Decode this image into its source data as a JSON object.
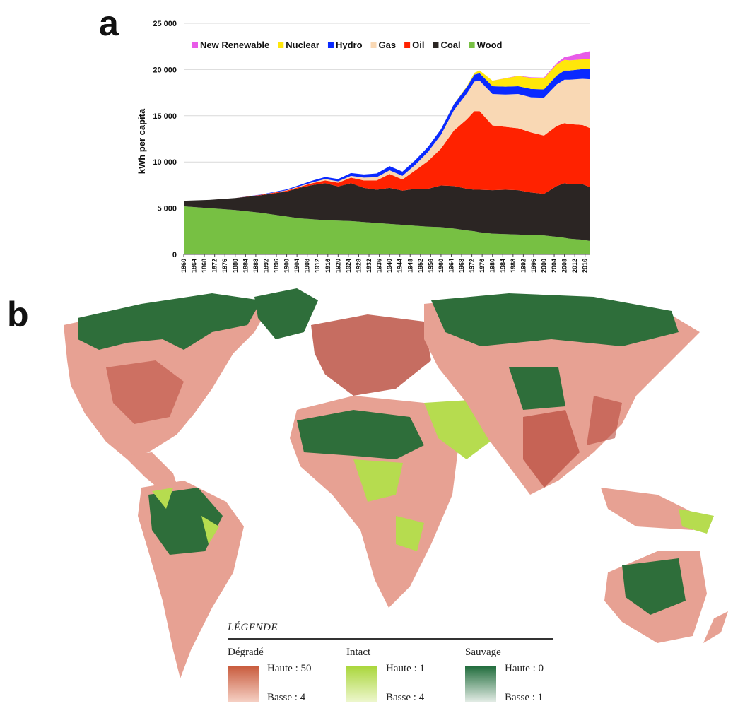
{
  "panels": {
    "a": "a",
    "b": "b"
  },
  "chart_data": {
    "type": "area",
    "stacked": true,
    "xlabel": "",
    "ylabel": "kWh per capita",
    "ylim": [
      0,
      25000
    ],
    "yticks": [
      0,
      5000,
      10000,
      15000,
      20000,
      25000
    ],
    "ytick_labels": [
      "0",
      "5 000",
      "10 000",
      "15 000",
      "20 000",
      "25 000"
    ],
    "xtick_labels": [
      "1860",
      "1864",
      "1868",
      "1872",
      "1876",
      "1880",
      "1884",
      "1888",
      "1892",
      "1896",
      "1900",
      "1904",
      "1908",
      "1912",
      "1916",
      "1920",
      "1924",
      "1928",
      "1932",
      "1936",
      "1940",
      "1944",
      "1948",
      "1952",
      "1956",
      "1960",
      "1964",
      "1968",
      "1972",
      "1976",
      "1980",
      "1984",
      "1988",
      "1992",
      "1996",
      "2000",
      "2004",
      "2008",
      "2012",
      "2016"
    ],
    "grid": "horizontal",
    "legend_position": "top",
    "x": [
      1860,
      1870,
      1880,
      1890,
      1900,
      1905,
      1910,
      1915,
      1920,
      1925,
      1930,
      1935,
      1940,
      1945,
      1950,
      1955,
      1960,
      1965,
      1970,
      1973,
      1975,
      1980,
      1985,
      1990,
      1995,
      2000,
      2005,
      2008,
      2010,
      2015,
      2018
    ],
    "series": [
      {
        "name": "Wood",
        "color": "#77c043",
        "values": [
          5200,
          5000,
          4800,
          4500,
          4100,
          3900,
          3800,
          3700,
          3650,
          3600,
          3500,
          3400,
          3300,
          3200,
          3100,
          3000,
          2950,
          2800,
          2600,
          2500,
          2400,
          2250,
          2200,
          2150,
          2100,
          2050,
          1900,
          1800,
          1700,
          1600,
          1450
        ]
      },
      {
        "name": "Coal",
        "color": "#2b2523",
        "values": [
          600,
          900,
          1300,
          1900,
          2700,
          3300,
          3700,
          4000,
          3700,
          4100,
          3700,
          3600,
          3900,
          3700,
          4000,
          4100,
          4500,
          4600,
          4500,
          4500,
          4600,
          4700,
          4800,
          4800,
          4600,
          4500,
          5500,
          5900,
          5900,
          6000,
          5800
        ]
      },
      {
        "name": "Oil",
        "color": "#ff2200",
        "values": [
          0,
          0,
          0,
          50,
          100,
          100,
          200,
          300,
          400,
          600,
          800,
          1000,
          1500,
          1200,
          2000,
          3000,
          4000,
          6000,
          7500,
          8500,
          8500,
          7000,
          6800,
          6700,
          6500,
          6300,
          6500,
          6500,
          6500,
          6400,
          6400
        ]
      },
      {
        "name": "Gas",
        "color": "#f9d8b4",
        "values": [
          0,
          0,
          0,
          0,
          50,
          80,
          100,
          150,
          150,
          200,
          300,
          350,
          400,
          400,
          600,
          1000,
          1500,
          2200,
          2800,
          3200,
          3300,
          3400,
          3500,
          3700,
          3800,
          4100,
          4500,
          4700,
          4800,
          5000,
          5300
        ]
      },
      {
        "name": "Hydro",
        "color": "#0a2aff",
        "values": [
          0,
          0,
          0,
          30,
          80,
          120,
          180,
          220,
          250,
          300,
          350,
          400,
          450,
          450,
          500,
          550,
          600,
          650,
          700,
          750,
          800,
          850,
          850,
          850,
          900,
          900,
          950,
          1000,
          1000,
          1050,
          1100
        ]
      },
      {
        "name": "Nuclear",
        "color": "#ffe70a",
        "values": [
          0,
          0,
          0,
          0,
          0,
          0,
          0,
          0,
          0,
          0,
          0,
          0,
          0,
          0,
          0,
          0,
          0,
          20,
          80,
          200,
          300,
          600,
          900,
          1100,
          1200,
          1200,
          1200,
          1150,
          1100,
          1050,
          1050
        ]
      },
      {
        "name": "New Renewable",
        "color": "#e85be8",
        "values": [
          0,
          0,
          0,
          0,
          0,
          0,
          0,
          0,
          0,
          0,
          0,
          0,
          0,
          0,
          0,
          0,
          0,
          0,
          0,
          0,
          0,
          0,
          20,
          40,
          60,
          80,
          150,
          300,
          450,
          700,
          900
        ]
      }
    ]
  },
  "map_legend": {
    "title": "LÉGENDE",
    "categories": [
      {
        "name": "Dégradé",
        "high": "Haute : 50",
        "low": "Basse : 4",
        "color_top": "#c85a3c",
        "color_bottom": "#f6d2c6"
      },
      {
        "name": "Intact",
        "high": "Haute : 1",
        "low": "Basse : 4",
        "color_top": "#a9d63a",
        "color_bottom": "#eef7cf"
      },
      {
        "name": "Sauvage",
        "high": "Haute : 0",
        "low": "Basse : 1",
        "color_top": "#1e6b3a",
        "color_bottom": "#e6eee8"
      }
    ]
  },
  "map_colors": {
    "degraded": "#e7a193",
    "degraded_strong": "#b8483a",
    "intact": "#b6dc4f",
    "wild": "#2e6e3a"
  }
}
